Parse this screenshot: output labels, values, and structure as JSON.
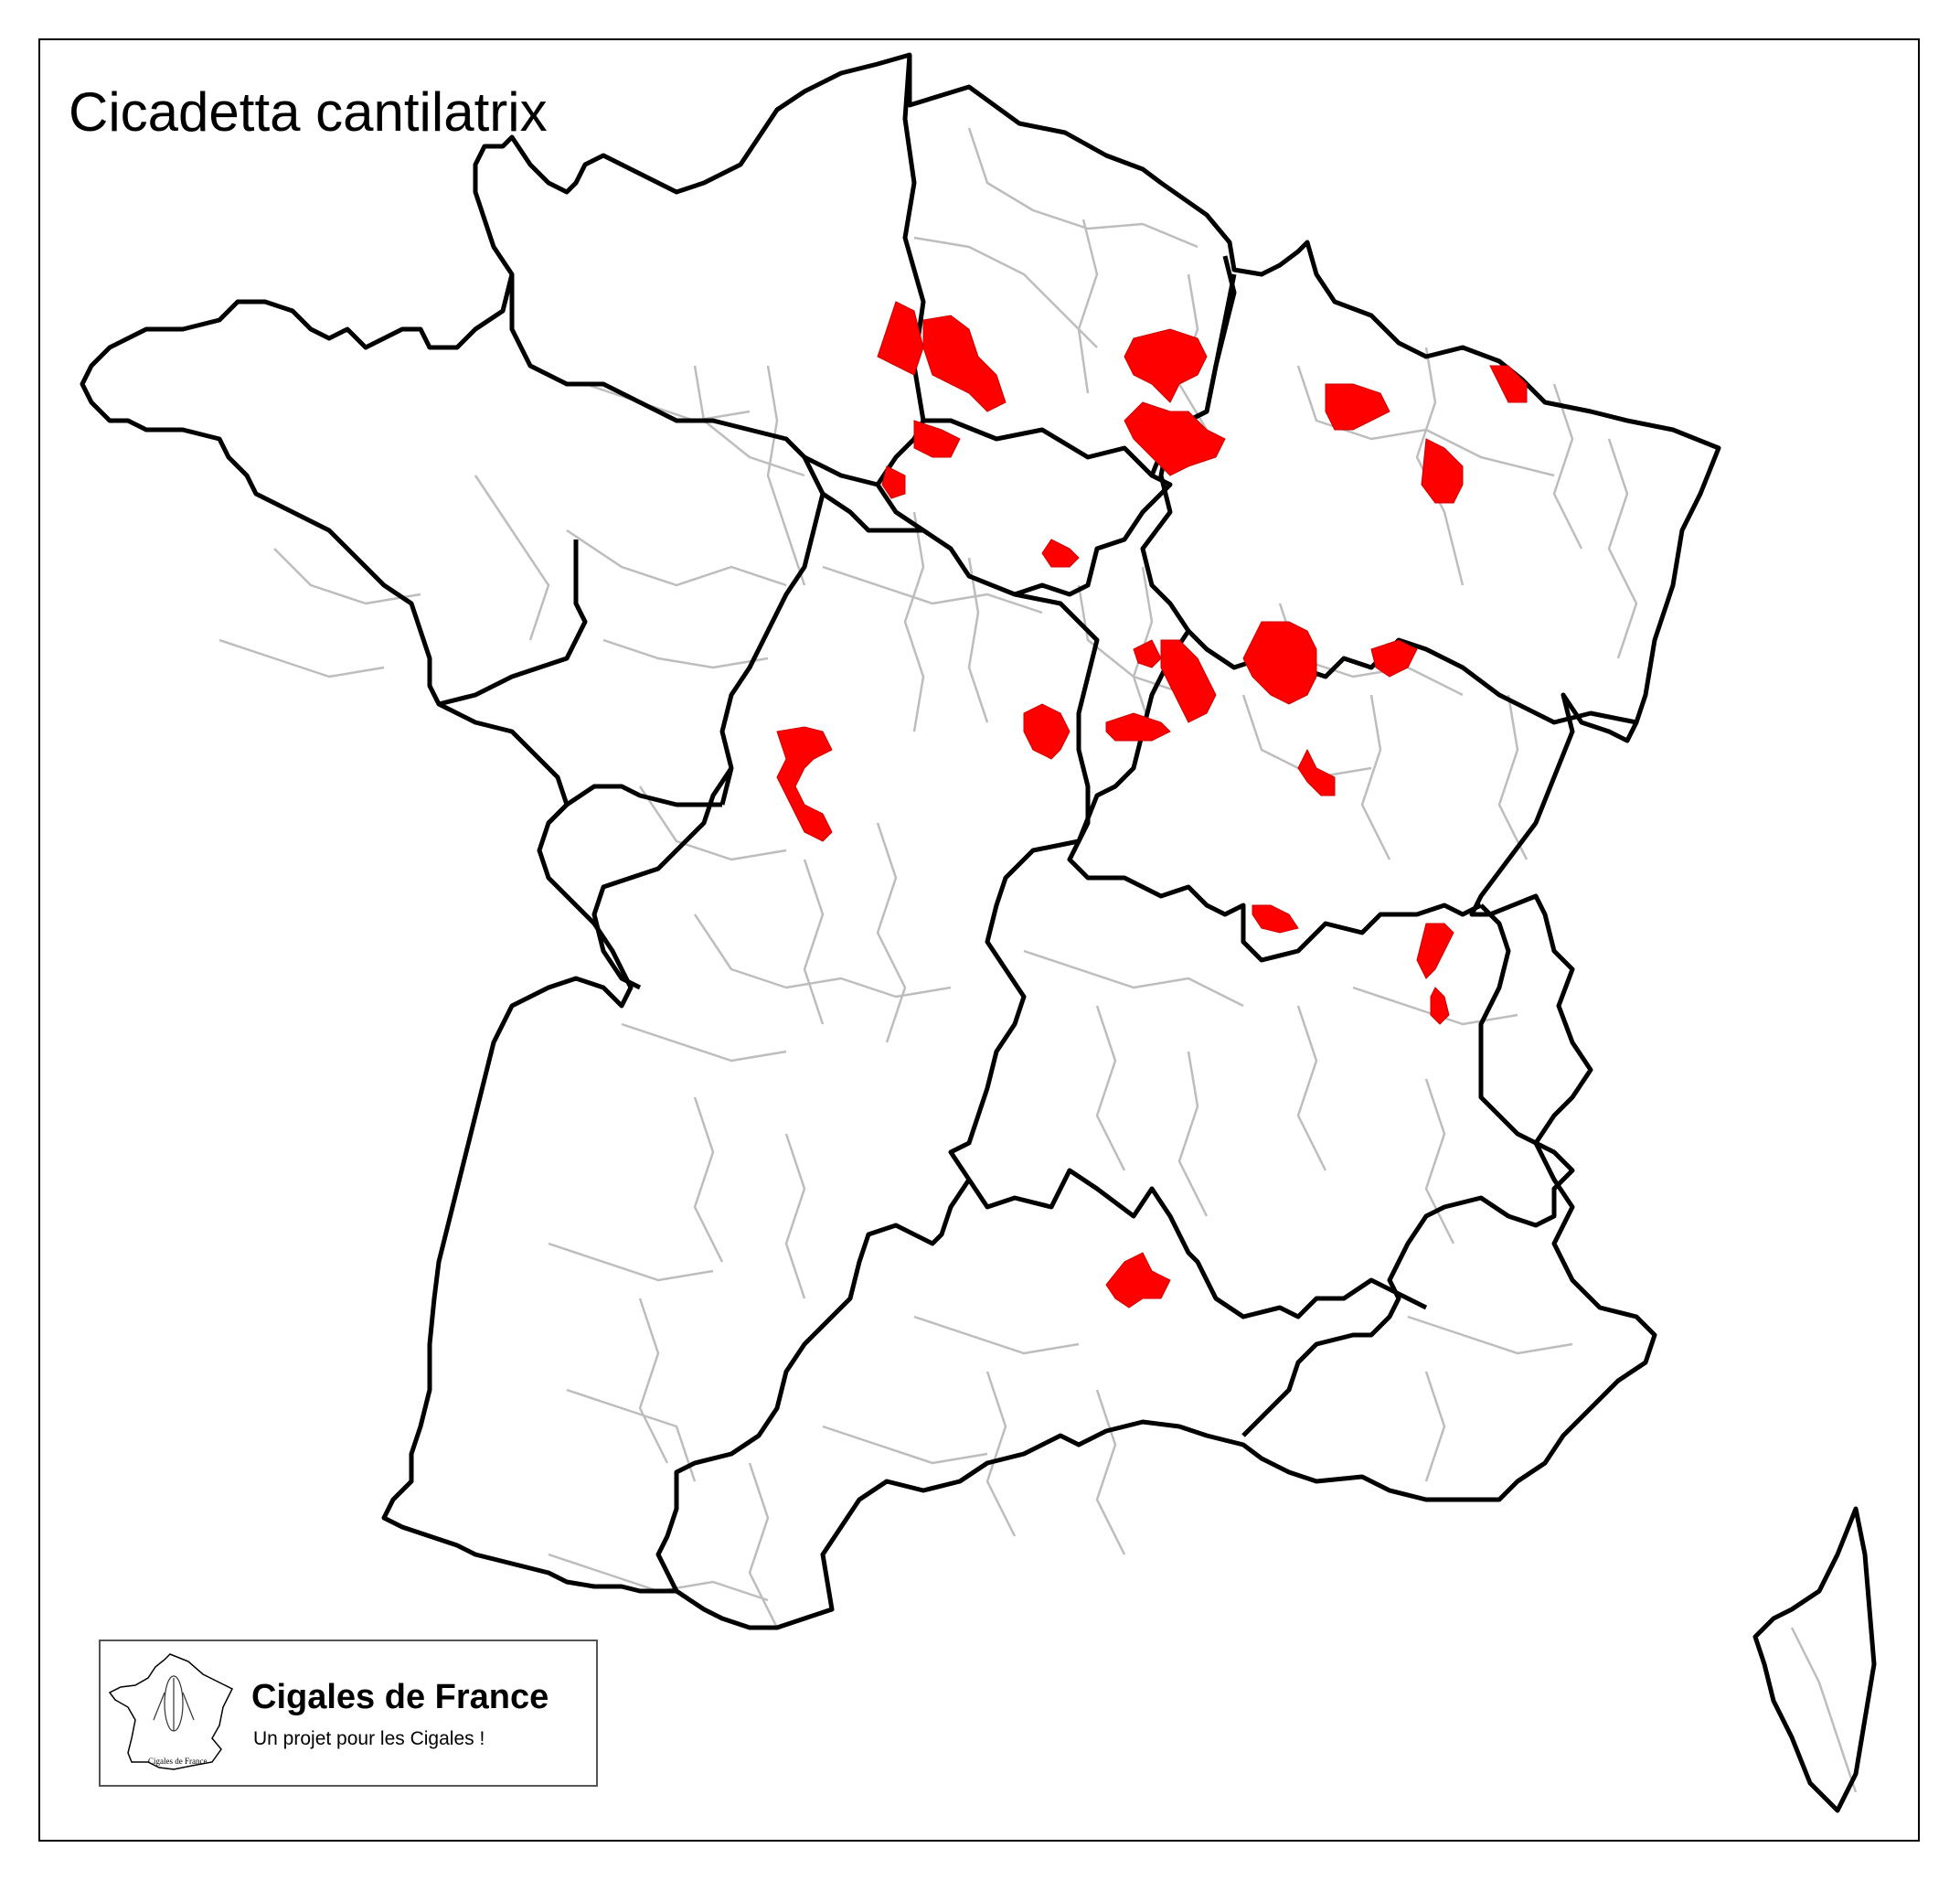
{
  "map": {
    "title": "Cicadetta cantilatrix",
    "colors": {
      "background": "#ffffff",
      "region_border": "#000000",
      "department_border": "#bdbdbd",
      "occurrence": "#ff0000"
    }
  },
  "logo": {
    "name": "Cigales de France",
    "tagline": "Un projet pour les Cigales !",
    "mini_map_caption": "Cigales de France"
  }
}
